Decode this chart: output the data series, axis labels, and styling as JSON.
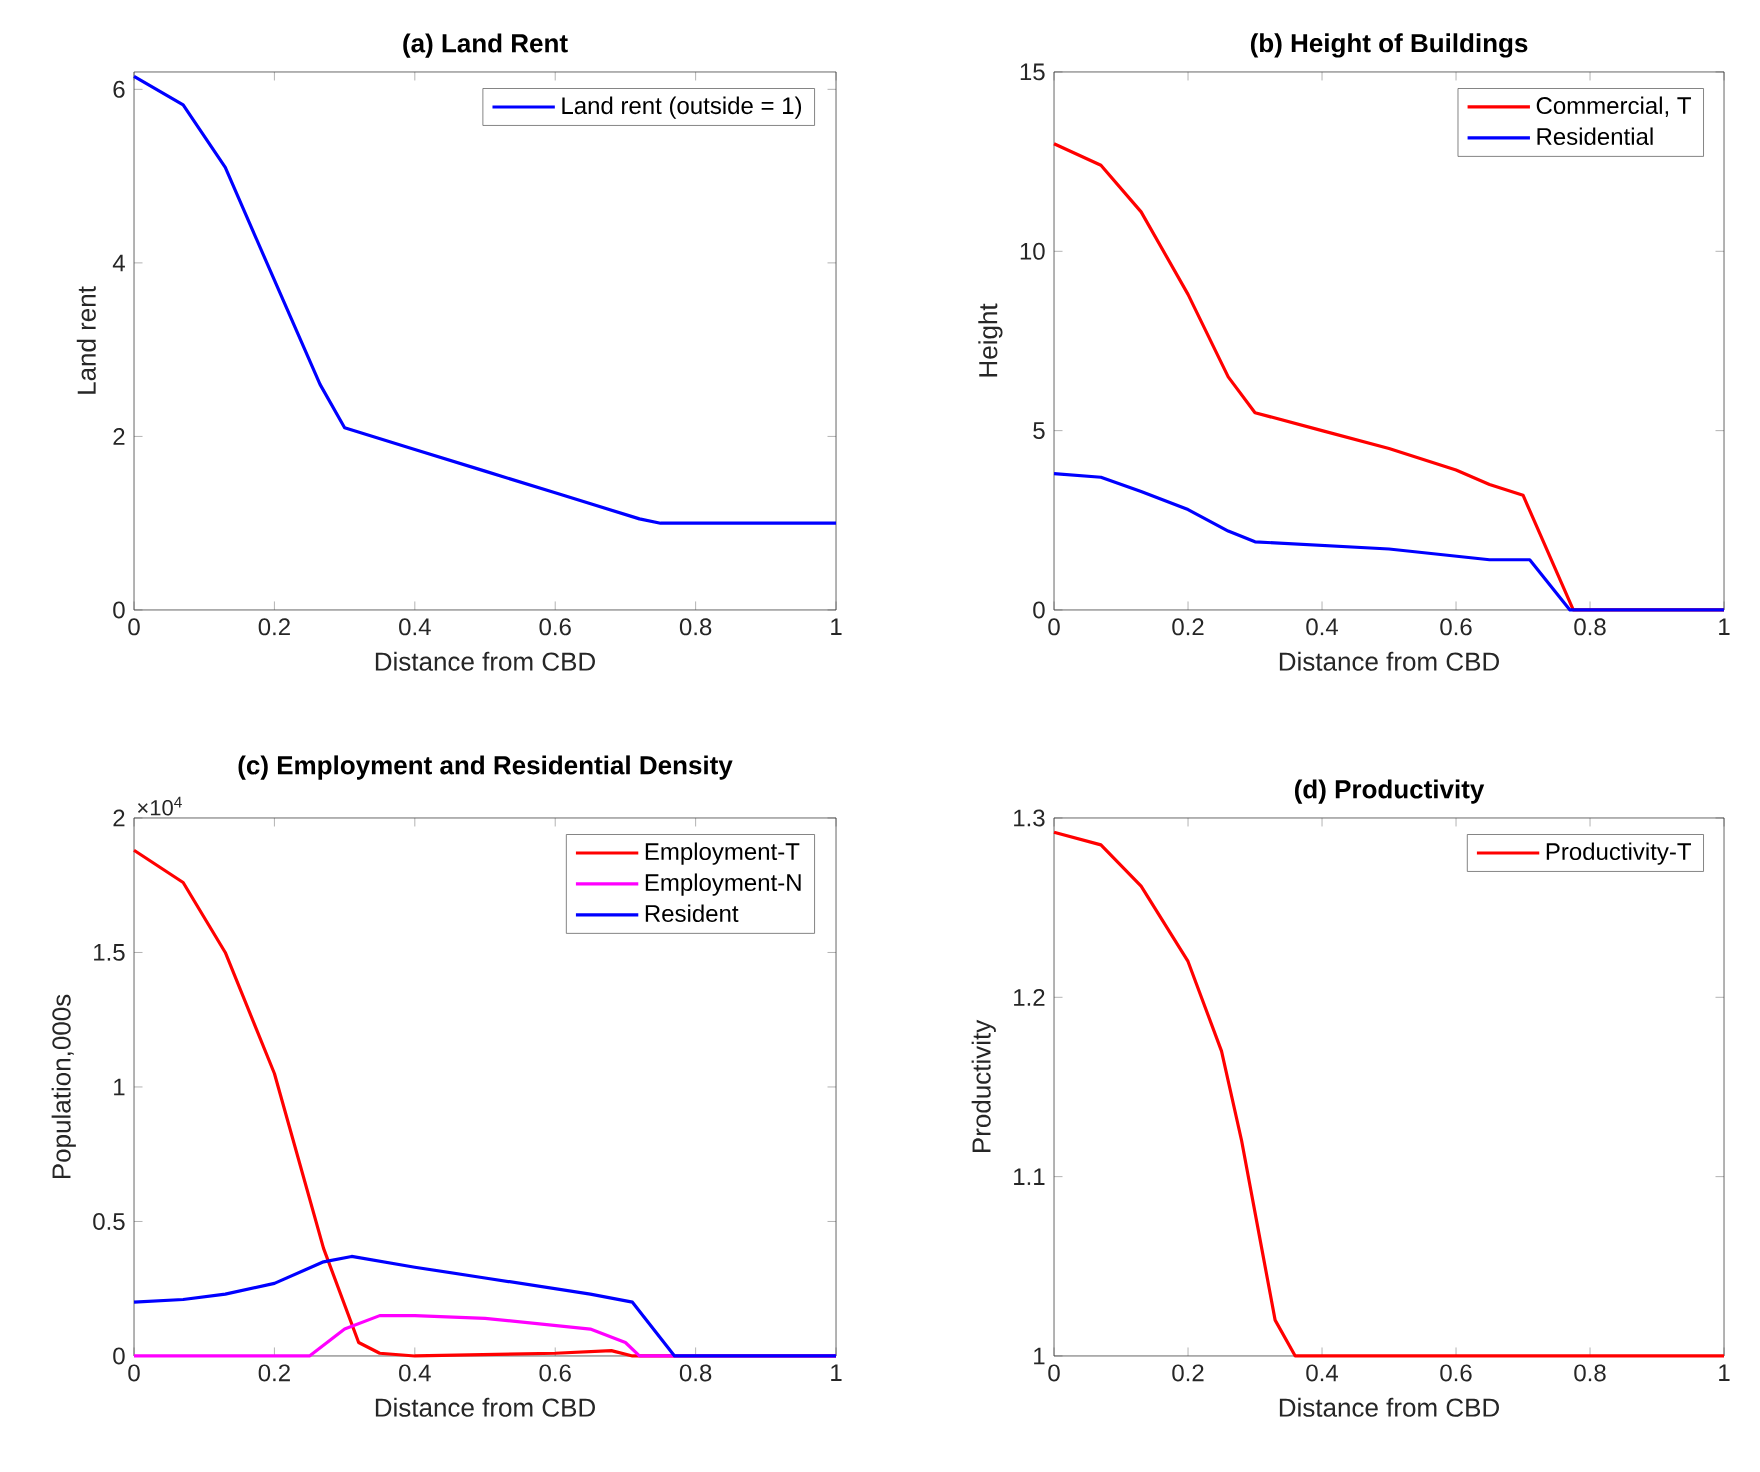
{
  "chart_data": [
    {
      "type": "line",
      "title": "(a) Land Rent",
      "xlabel": "Distance from CBD",
      "ylabel": "Land rent",
      "xlim": [
        0,
        1
      ],
      "ylim": [
        0,
        6.2
      ],
      "xticks": [
        0,
        0.2,
        0.4,
        0.6,
        0.8,
        1
      ],
      "yticks": [
        0,
        2,
        4,
        6
      ],
      "legend": "top right",
      "grid": false,
      "line_style": "solid",
      "series": [
        {
          "name": "Land rent (outside = 1)",
          "color": "#0000ff",
          "x": [
            0,
            0.07,
            0.13,
            0.2,
            0.265,
            0.3,
            0.4,
            0.5,
            0.6,
            0.72,
            0.75,
            1
          ],
          "values": [
            6.15,
            5.82,
            5.1,
            3.8,
            2.6,
            2.1,
            1.85,
            1.6,
            1.35,
            1.05,
            1,
            1
          ]
        }
      ]
    },
    {
      "type": "line",
      "title": "(b) Height of Buildings",
      "xlabel": "Distance from CBD",
      "ylabel": "Height",
      "xlim": [
        0,
        1
      ],
      "ylim": [
        0,
        15
      ],
      "xticks": [
        0,
        0.2,
        0.4,
        0.6,
        0.8,
        1
      ],
      "yticks": [
        0,
        5,
        10,
        15
      ],
      "legend": "top right",
      "grid": false,
      "line_style": "solid",
      "series": [
        {
          "name": "Commercial, T",
          "color": "#ff0000",
          "x": [
            0,
            0.07,
            0.13,
            0.2,
            0.26,
            0.3,
            0.4,
            0.5,
            0.6,
            0.65,
            0.7,
            0.775,
            1
          ],
          "values": [
            13,
            12.4,
            11.1,
            8.8,
            6.5,
            5.5,
            5.0,
            4.5,
            3.9,
            3.5,
            3.2,
            0,
            0
          ]
        },
        {
          "name": "Residential",
          "color": "#0000ff",
          "x": [
            0,
            0.07,
            0.13,
            0.2,
            0.26,
            0.3,
            0.4,
            0.5,
            0.65,
            0.71,
            0.77,
            1
          ],
          "values": [
            3.8,
            3.7,
            3.3,
            2.8,
            2.2,
            1.9,
            1.8,
            1.7,
            1.4,
            1.4,
            0,
            0
          ]
        }
      ]
    },
    {
      "type": "line",
      "title": "(c) Employment and Residential Density",
      "xlabel": "Distance from CBD",
      "ylabel": "Population,000s",
      "annotations": [
        "×10$^{4}$"
      ],
      "xlim": [
        0,
        1
      ],
      "ylim": [
        0,
        2
      ],
      "xticks": [
        0,
        0.2,
        0.4,
        0.6,
        0.8,
        1
      ],
      "yticks": [
        0,
        0.5,
        1,
        1.5,
        2
      ],
      "legend": "top right",
      "grid": false,
      "line_style": "solid",
      "series": [
        {
          "name": "Employment-T",
          "color": "#ff0000",
          "x": [
            0,
            0.07,
            0.13,
            0.2,
            0.27,
            0.32,
            0.35,
            0.4,
            0.6,
            0.68,
            0.71,
            1
          ],
          "values": [
            1.88,
            1.76,
            1.5,
            1.05,
            0.4,
            0.05,
            0.01,
            0,
            0.01,
            0.02,
            0,
            0
          ]
        },
        {
          "name": "Employment-N",
          "color": "#ff00ff",
          "x": [
            0,
            0.25,
            0.3,
            0.35,
            0.4,
            0.5,
            0.65,
            0.7,
            0.72,
            1
          ],
          "values": [
            0,
            0,
            0.1,
            0.15,
            0.15,
            0.14,
            0.1,
            0.05,
            0,
            0
          ]
        },
        {
          "name": "Resident",
          "color": "#0000ff",
          "x": [
            0,
            0.07,
            0.13,
            0.2,
            0.27,
            0.31,
            0.4,
            0.5,
            0.65,
            0.71,
            0.77,
            1
          ],
          "values": [
            0.2,
            0.21,
            0.23,
            0.27,
            0.35,
            0.37,
            0.33,
            0.29,
            0.23,
            0.2,
            0,
            0
          ]
        }
      ]
    },
    {
      "type": "line",
      "title": "(d) Productivity",
      "xlabel": "Distance from CBD",
      "ylabel": "Productivity",
      "xlim": [
        0,
        1
      ],
      "ylim": [
        1,
        1.3
      ],
      "xticks": [
        0,
        0.2,
        0.4,
        0.6,
        0.8,
        1
      ],
      "yticks": [
        1,
        1.1,
        1.2,
        1.3
      ],
      "legend": "top right",
      "grid": false,
      "line_style": "solid",
      "series": [
        {
          "name": "Productivity-T",
          "color": "#ff0000",
          "x": [
            0,
            0.07,
            0.13,
            0.2,
            0.25,
            0.28,
            0.31,
            0.33,
            0.36,
            0.4,
            1
          ],
          "values": [
            1.292,
            1.285,
            1.262,
            1.22,
            1.17,
            1.12,
            1.06,
            1.02,
            1.0,
            1.0,
            1.0
          ]
        }
      ]
    }
  ]
}
